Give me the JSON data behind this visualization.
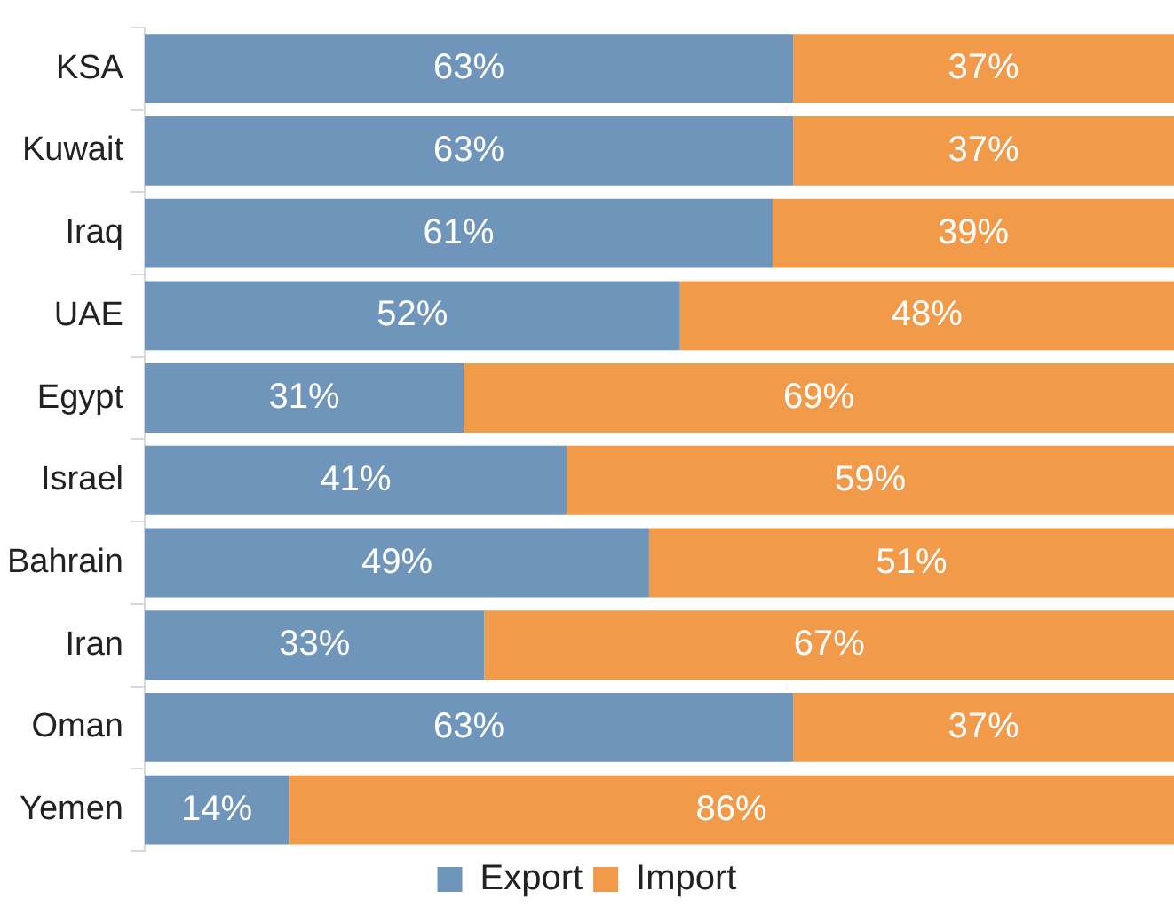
{
  "chart_data": {
    "type": "bar",
    "orientation": "horizontal",
    "stacked": true,
    "categories": [
      "KSA",
      "Kuwait",
      "Iraq",
      "UAE",
      "Egypt",
      "Israel",
      "Bahrain",
      "Iran",
      "Oman",
      "Yemen"
    ],
    "series": [
      {
        "name": "Export",
        "color": "#6f95bb",
        "values": [
          63,
          63,
          61,
          52,
          31,
          41,
          49,
          33,
          63,
          14
        ],
        "value_labels": [
          "63%",
          "63%",
          "61%",
          "52%",
          "31%",
          "41%",
          "49%",
          "33%",
          "63%",
          "14%"
        ]
      },
      {
        "name": "Import",
        "color": "#f09a4a",
        "values": [
          37,
          37,
          39,
          48,
          69,
          59,
          51,
          67,
          37,
          86
        ],
        "value_labels": [
          "37%",
          "37%",
          "39%",
          "48%",
          "69%",
          "59%",
          "51%",
          "67%",
          "37%",
          "86%"
        ]
      }
    ],
    "legend": "bottom",
    "grid": false
  }
}
